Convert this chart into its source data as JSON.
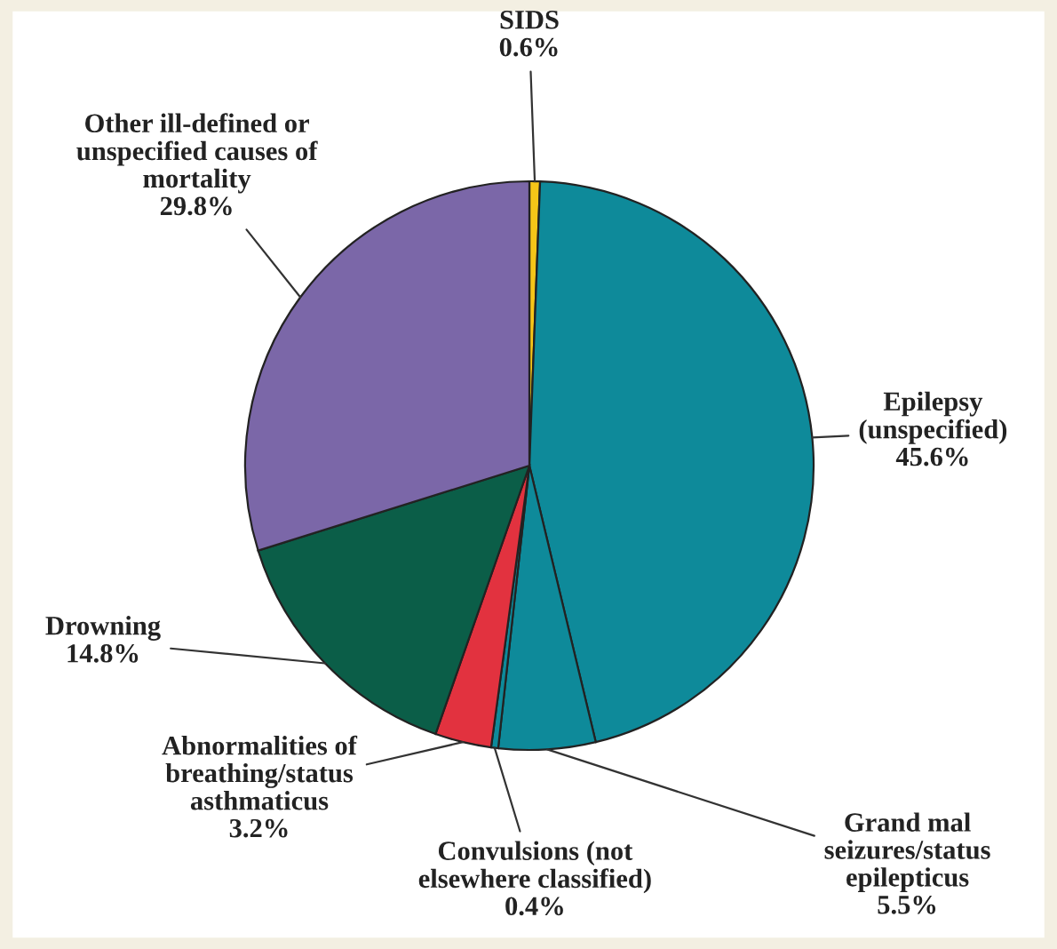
{
  "chart_data": {
    "type": "pie",
    "categories": [
      "SIDS",
      "Epilepsy\n(unspecified)",
      "Grand mal\nseizures/status\nepilepticus",
      "Convulsions (not\nelsewhere classified)",
      "Abnormalities of\nbreathing/status\nasthmaticus",
      "Drowning",
      "Other ill-defined or\nunspecified causes of\nmortality"
    ],
    "values": [
      0.6,
      45.6,
      5.5,
      0.4,
      3.2,
      14.8,
      29.8
    ],
    "value_labels": [
      "0.6%",
      "45.6%",
      "5.5%",
      "0.4%",
      "3.2%",
      "14.8%",
      "29.8%"
    ],
    "colors": [
      "#f5c518",
      "#0e8a9a",
      "#0e8a9a",
      "#0e8a9a",
      "#e2323f",
      "#0b5e48",
      "#7b67a8"
    ],
    "legend": false
  }
}
